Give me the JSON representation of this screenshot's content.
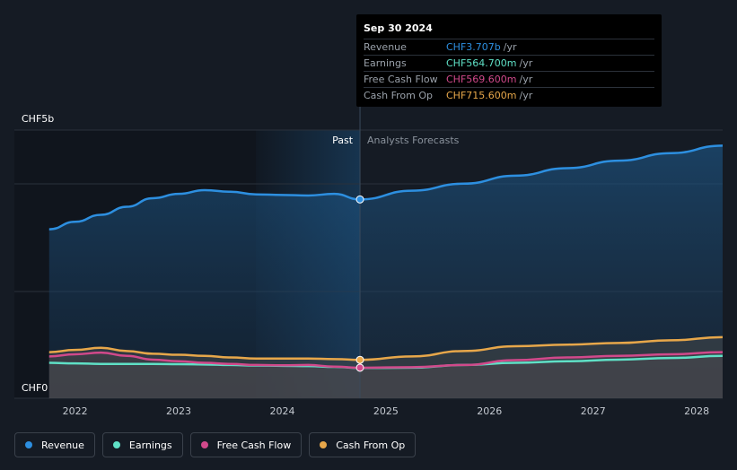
{
  "chart_data": {
    "type": "area",
    "y_axis_labels": [
      "CHF5b",
      "CHF0"
    ],
    "ylim": [
      0,
      5000
    ],
    "x_tick_labels": [
      "2022",
      "2023",
      "2024",
      "2025",
      "2026",
      "2027",
      "2028"
    ],
    "x_range": [
      2021.7,
      2028.25
    ],
    "past_label": "Past",
    "forecast_label": "Analysts Forecasts",
    "past_end": 2024.75,
    "series": [
      {
        "name": "Revenue",
        "color": "#2d8fe0",
        "x": [
          2021.75,
          2022.0,
          2022.25,
          2022.5,
          2022.75,
          2023.0,
          2023.25,
          2023.5,
          2023.75,
          2024.0,
          2024.25,
          2024.5,
          2024.75,
          2025.25,
          2025.75,
          2026.25,
          2026.75,
          2027.25,
          2027.75,
          2028.25
        ],
        "values": [
          3150,
          3290,
          3420,
          3570,
          3730,
          3810,
          3880,
          3850,
          3800,
          3790,
          3780,
          3810,
          3707,
          3870,
          4000,
          4150,
          4290,
          4430,
          4570,
          4710
        ]
      },
      {
        "name": "Earnings",
        "color": "#5fe0c6",
        "x": [
          2021.75,
          2022.0,
          2022.25,
          2022.5,
          2022.75,
          2023.0,
          2023.25,
          2023.5,
          2023.75,
          2024.0,
          2024.25,
          2024.5,
          2024.75,
          2025.25,
          2025.75,
          2026.25,
          2026.75,
          2027.25,
          2027.75,
          2028.25
        ],
        "values": [
          660,
          650,
          640,
          640,
          640,
          635,
          630,
          620,
          610,
          605,
          600,
          585,
          564.7,
          570,
          620,
          660,
          690,
          720,
          750,
          790
        ]
      },
      {
        "name": "Free Cash Flow",
        "color": "#d1498b",
        "x": [
          2021.75,
          2022.0,
          2022.25,
          2022.5,
          2022.75,
          2023.0,
          2023.25,
          2023.5,
          2023.75,
          2024.0,
          2024.25,
          2024.5,
          2024.75,
          2025.25,
          2025.75,
          2026.25,
          2026.75,
          2027.25,
          2027.75,
          2028.25
        ],
        "values": [
          780,
          820,
          850,
          790,
          720,
          690,
          660,
          640,
          620,
          615,
          620,
          590,
          569.6,
          580,
          620,
          710,
          760,
          790,
          820,
          860
        ]
      },
      {
        "name": "Cash From Op",
        "color": "#e7a74a",
        "x": [
          2021.75,
          2022.0,
          2022.25,
          2022.5,
          2022.75,
          2023.0,
          2023.25,
          2023.5,
          2023.75,
          2024.0,
          2024.25,
          2024.5,
          2024.75,
          2025.25,
          2025.75,
          2026.25,
          2026.75,
          2027.25,
          2027.75,
          2028.25
        ],
        "values": [
          860,
          900,
          940,
          880,
          830,
          810,
          790,
          760,
          740,
          740,
          740,
          730,
          715.6,
          780,
          880,
          970,
          1000,
          1030,
          1080,
          1140
        ]
      }
    ]
  },
  "tooltip": {
    "date": "Sep 30 2024",
    "rows": [
      {
        "label": "Revenue",
        "value": "CHF3.707b",
        "unit": "/yr",
        "color": "#2d8fe0"
      },
      {
        "label": "Earnings",
        "value": "CHF564.700m",
        "unit": "/yr",
        "color": "#5fe0c6"
      },
      {
        "label": "Free Cash Flow",
        "value": "CHF569.600m",
        "unit": "/yr",
        "color": "#d1498b"
      },
      {
        "label": "Cash From Op",
        "value": "CHF715.600m",
        "unit": "/yr",
        "color": "#e7a74a"
      }
    ]
  },
  "legend": [
    {
      "label": "Revenue",
      "color": "#2d8fe0"
    },
    {
      "label": "Earnings",
      "color": "#5fe0c6"
    },
    {
      "label": "Free Cash Flow",
      "color": "#d1498b"
    },
    {
      "label": "Cash From Op",
      "color": "#e7a74a"
    }
  ]
}
